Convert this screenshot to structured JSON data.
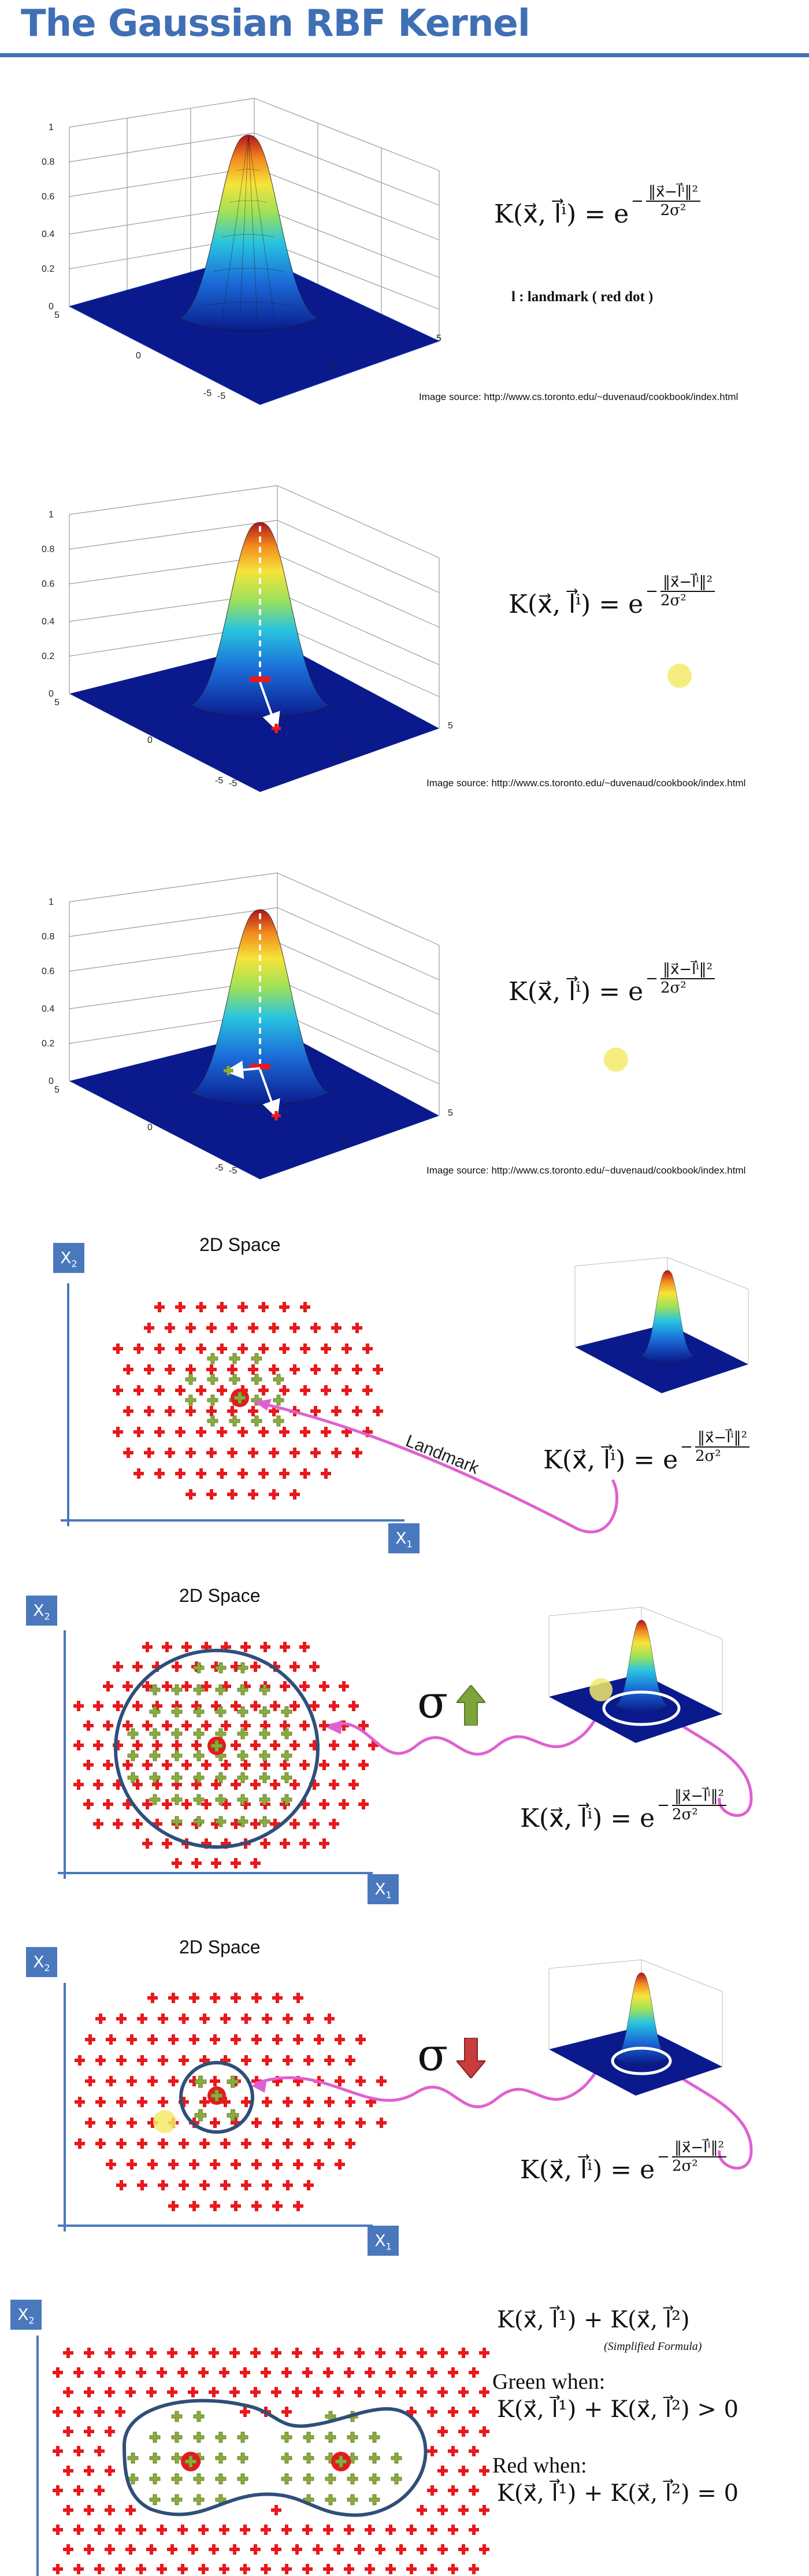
{
  "title": "The Gaussian RBF Kernel",
  "kernel_formula": "K(x⃗, l⃗ⁱ) = e^(−‖x⃗ − l⃗ⁱ‖² / 2σ²)",
  "formula_lhs": "K(x⃗, l⃗ⁱ) = e",
  "formula_exp_num": "‖x⃗−l⃗ⁱ‖²",
  "formula_exp_den": "2σ²",
  "formula_minus": "−",
  "landmark_note": "l : landmark ( red dot )",
  "image_source": "Image source: http://www.cs.toronto.edu/~duvenaud/cookbook/index.html",
  "plot_ticks": {
    "z": [
      "1",
      "0.8",
      "0.6",
      "0.4",
      "0.2",
      "0"
    ],
    "left": [
      "5",
      "0",
      "-5"
    ],
    "right": [
      "5",
      "0",
      "-5"
    ]
  },
  "space_label": "2D Space",
  "axis_x1": "X",
  "axis_x1_sub": "1",
  "axis_x2": "X",
  "axis_x2_sub": "2",
  "arrow_label": "Landmark",
  "sigma": "σ",
  "sum_formula": "K(x⃗, l⃗¹) + K(x⃗, l⃗²)",
  "simplified": "(Simplified Formula)",
  "green_when": "Green when:",
  "green_formula": "K(x⃗, l⃗¹) + K(x⃗, l⃗²) > 0",
  "red_when": "Red when:",
  "red_formula": "K(x⃗, l⃗¹) + K(x⃗, l⃗²) = 0",
  "colors": {
    "title": "#3f6fb5",
    "axis": "#4a78bd",
    "red_point": "#e8191c",
    "green_point": "#8aac3c",
    "boundary": "#2f4f7a",
    "arrow": "#e060d0",
    "plot_base": "#0a1a8c",
    "highlight": "#f3ea6a"
  }
}
